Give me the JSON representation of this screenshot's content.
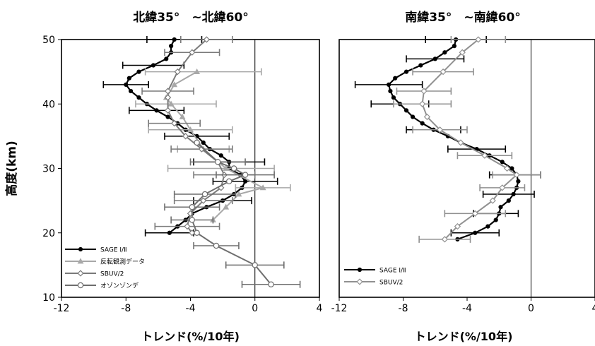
{
  "chart_data": [
    {
      "type": "line",
      "title": "北緯35°　~北緯60°",
      "xlabel": "トレンド(%/10年)",
      "ylabel": "高度(km)",
      "xlim": [
        -12,
        4
      ],
      "ylim": [
        10,
        50
      ],
      "xticks": [
        "-12",
        "-8",
        "-4",
        "0",
        "4"
      ],
      "yticks": [
        "10",
        "20",
        "30",
        "40",
        "50"
      ],
      "legend_position": "bottom-left",
      "series": [
        {
          "name": "SAGE Ⅰ/Ⅱ",
          "color": "#000000",
          "marker": "filled-circle",
          "points": [
            {
              "x": -5.3,
              "y": 20
            },
            {
              "x": -4.8,
              "y": 21
            },
            {
              "x": -4.3,
              "y": 22
            },
            {
              "x": -3.9,
              "y": 23
            },
            {
              "x": -3.0,
              "y": 24
            },
            {
              "x": -2.0,
              "y": 25
            },
            {
              "x": -1.3,
              "y": 26
            },
            {
              "x": -0.8,
              "y": 27
            },
            {
              "x": -0.6,
              "y": 28
            },
            {
              "x": -0.9,
              "y": 29
            },
            {
              "x": -1.6,
              "y": 30
            },
            {
              "x": -1.6,
              "y": 31
            },
            {
              "x": -2.1,
              "y": 32
            },
            {
              "x": -2.8,
              "y": 33
            },
            {
              "x": -3.2,
              "y": 34
            },
            {
              "x": -3.6,
              "y": 35
            },
            {
              "x": -4.3,
              "y": 36
            },
            {
              "x": -4.8,
              "y": 37
            },
            {
              "x": -5.4,
              "y": 38
            },
            {
              "x": -6.1,
              "y": 39
            },
            {
              "x": -6.7,
              "y": 40
            },
            {
              "x": -7.2,
              "y": 41
            },
            {
              "x": -7.7,
              "y": 42
            },
            {
              "x": -8.0,
              "y": 43
            },
            {
              "x": -7.8,
              "y": 44
            },
            {
              "x": -7.2,
              "y": 45
            },
            {
              "x": -6.3,
              "y": 46
            },
            {
              "x": -5.5,
              "y": 47
            },
            {
              "x": -5.2,
              "y": 48
            },
            {
              "x": -5.2,
              "y": 49
            },
            {
              "x": -5.0,
              "y": 50
            }
          ],
          "error_bars": [
            {
              "y": 20,
              "x": -5.3,
              "lo": -6.8,
              "hi": -3.8
            },
            {
              "y": 25,
              "x": -2.0,
              "lo": -3.8,
              "hi": -0.2
            },
            {
              "y": 28,
              "x": -0.6,
              "lo": -2.6,
              "hi": 1.4
            },
            {
              "y": 31,
              "x": -1.6,
              "lo": -3.8,
              "hi": 0.6
            },
            {
              "y": 35,
              "x": -3.6,
              "lo": -5.6,
              "hi": -1.6
            },
            {
              "y": 39,
              "x": -6.1,
              "lo": -7.8,
              "hi": -4.4
            },
            {
              "y": 43,
              "x": -8.0,
              "lo": -9.4,
              "hi": -6.6
            },
            {
              "y": 46,
              "x": -6.3,
              "lo": -8.2,
              "hi": -4.4
            },
            {
              "y": 50,
              "x": -5.0,
              "lo": -6.7,
              "hi": -3.3
            }
          ]
        },
        {
          "name": "反転観測データ",
          "color": "#a8a8a8",
          "marker": "triangle",
          "points": [
            {
              "x": -2.6,
              "y": 22
            },
            {
              "x": -1.8,
              "y": 24
            },
            {
              "x": -1.0,
              "y": 26
            },
            {
              "x": 0.5,
              "y": 27
            },
            {
              "x": -1.8,
              "y": 30
            },
            {
              "x": -3.2,
              "y": 33
            },
            {
              "x": -4.0,
              "y": 36
            },
            {
              "x": -4.5,
              "y": 38
            },
            {
              "x": -5.2,
              "y": 40
            },
            {
              "x": -5.5,
              "y": 41
            },
            {
              "x": -5.0,
              "y": 43
            },
            {
              "x": -3.6,
              "y": 45
            }
          ],
          "error_bars": [
            {
              "y": 27,
              "x": 0.5,
              "lo": -1.2,
              "hi": 2.2
            },
            {
              "y": 30,
              "x": -1.8,
              "lo": -5.4,
              "hi": 1.2
            },
            {
              "y": 33,
              "x": -3.2,
              "lo": -4.8,
              "hi": -1.6
            },
            {
              "y": 36,
              "x": -4.0,
              "lo": -6.6,
              "hi": -1.4
            },
            {
              "y": 40,
              "x": -5.2,
              "lo": -7.4,
              "hi": -2.4
            },
            {
              "y": 45,
              "x": -3.6,
              "lo": -6.8,
              "hi": 0.4
            }
          ]
        },
        {
          "name": "SBUV/2",
          "color": "#7a7a7a",
          "marker": "open-diamond",
          "points": [
            {
              "x": -3.9,
              "y": 20
            },
            {
              "x": -4.2,
              "y": 21
            },
            {
              "x": -4.0,
              "y": 23
            },
            {
              "x": -3.2,
              "y": 25
            },
            {
              "x": -2.1,
              "y": 27
            },
            {
              "x": -1.9,
              "y": 29
            },
            {
              "x": -2.3,
              "y": 31
            },
            {
              "x": -3.3,
              "y": 33
            },
            {
              "x": -4.3,
              "y": 35
            },
            {
              "x": -5.0,
              "y": 37
            },
            {
              "x": -5.4,
              "y": 39
            },
            {
              "x": -5.4,
              "y": 41
            },
            {
              "x": -5.4,
              "y": 42
            },
            {
              "x": -4.8,
              "y": 45
            },
            {
              "x": -3.9,
              "y": 48
            },
            {
              "x": -3.0,
              "y": 50
            }
          ],
          "error_bars": [
            {
              "y": 21,
              "x": -4.2,
              "lo": -6.2,
              "hi": -2.2
            },
            {
              "y": 25,
              "x": -3.2,
              "lo": -5.0,
              "hi": -1.4
            },
            {
              "y": 29,
              "x": -1.9,
              "lo": -3.8,
              "hi": 0.0
            },
            {
              "y": 33,
              "x": -3.3,
              "lo": -5.2,
              "hi": -1.4
            },
            {
              "y": 37,
              "x": -5.0,
              "lo": -6.6,
              "hi": -3.4
            },
            {
              "y": 42,
              "x": -5.4,
              "lo": -7.0,
              "hi": -3.8
            },
            {
              "y": 48,
              "x": -3.9,
              "lo": -5.6,
              "hi": -2.2
            },
            {
              "y": 50,
              "x": -3.0,
              "lo": -4.6,
              "hi": -1.4
            }
          ]
        },
        {
          "name": "オゾンゾンデ",
          "color": "#6e6e6e",
          "marker": "open-circle",
          "points": [
            {
              "x": 1.0,
              "y": 12
            },
            {
              "x": 0.0,
              "y": 15
            },
            {
              "x": -2.4,
              "y": 18
            },
            {
              "x": -3.6,
              "y": 20
            },
            {
              "x": -3.9,
              "y": 22
            },
            {
              "x": -3.9,
              "y": 24
            },
            {
              "x": -3.1,
              "y": 26
            },
            {
              "x": -1.6,
              "y": 28
            },
            {
              "x": -0.6,
              "y": 29
            },
            {
              "x": -1.3,
              "y": 30
            },
            {
              "x": -2.3,
              "y": 31
            },
            {
              "x": -3.6,
              "y": 34
            }
          ],
          "error_bars": [
            {
              "y": 12,
              "x": 1.0,
              "lo": -0.8,
              "hi": 2.8
            },
            {
              "y": 15,
              "x": 0.0,
              "lo": -1.8,
              "hi": 1.8
            },
            {
              "y": 18,
              "x": -2.4,
              "lo": -3.8,
              "hi": -1.0
            },
            {
              "y": 22,
              "x": -3.9,
              "lo": -5.2,
              "hi": -2.6
            },
            {
              "y": 24,
              "x": -3.9,
              "lo": -5.6,
              "hi": -2.2
            },
            {
              "y": 26,
              "x": -3.1,
              "lo": -5.0,
              "hi": -1.2
            },
            {
              "y": 29,
              "x": -0.6,
              "lo": -2.4,
              "hi": 1.2
            },
            {
              "y": 31,
              "x": -2.3,
              "lo": -4.0,
              "hi": -0.6
            }
          ]
        }
      ]
    },
    {
      "type": "line",
      "title": "南緯35°　~南緯60°",
      "xlabel": "トレンド(%/10年)",
      "ylabel": "",
      "xlim": [
        -12,
        4
      ],
      "ylim": [
        10,
        50
      ],
      "xticks": [
        "-12",
        "-8",
        "-4",
        "0",
        "4"
      ],
      "yticks": [],
      "legend_position": "bottom-left",
      "series": [
        {
          "name": "SAGE Ⅰ/Ⅱ",
          "color": "#000000",
          "marker": "filled-circle",
          "points": [
            {
              "x": -4.6,
              "y": 19
            },
            {
              "x": -3.5,
              "y": 20
            },
            {
              "x": -2.7,
              "y": 21
            },
            {
              "x": -2.2,
              "y": 22
            },
            {
              "x": -2.0,
              "y": 23
            },
            {
              "x": -1.9,
              "y": 24
            },
            {
              "x": -1.4,
              "y": 25
            },
            {
              "x": -1.1,
              "y": 26
            },
            {
              "x": -0.9,
              "y": 27
            },
            {
              "x": -0.8,
              "y": 28
            },
            {
              "x": -0.9,
              "y": 29
            },
            {
              "x": -1.2,
              "y": 30
            },
            {
              "x": -1.8,
              "y": 31
            },
            {
              "x": -2.6,
              "y": 32
            },
            {
              "x": -3.4,
              "y": 33
            },
            {
              "x": -4.4,
              "y": 34
            },
            {
              "x": -5.2,
              "y": 35
            },
            {
              "x": -6.1,
              "y": 36
            },
            {
              "x": -6.8,
              "y": 37
            },
            {
              "x": -7.4,
              "y": 38
            },
            {
              "x": -7.8,
              "y": 39
            },
            {
              "x": -8.2,
              "y": 40
            },
            {
              "x": -8.6,
              "y": 41
            },
            {
              "x": -8.8,
              "y": 42
            },
            {
              "x": -8.9,
              "y": 43
            },
            {
              "x": -8.5,
              "y": 44
            },
            {
              "x": -7.8,
              "y": 45
            },
            {
              "x": -6.9,
              "y": 46
            },
            {
              "x": -6.0,
              "y": 47
            },
            {
              "x": -5.4,
              "y": 48
            },
            {
              "x": -4.8,
              "y": 49
            },
            {
              "x": -4.7,
              "y": 50
            }
          ],
          "error_bars": [
            {
              "y": 20,
              "x": -3.5,
              "lo": -5.0,
              "hi": -2.0
            },
            {
              "y": 23,
              "x": -2.0,
              "lo": -3.6,
              "hi": -0.8
            },
            {
              "y": 26,
              "x": -1.1,
              "lo": -3.0,
              "hi": 0.2
            },
            {
              "y": 29,
              "x": -0.9,
              "lo": -2.6,
              "hi": 0.6
            },
            {
              "y": 33,
              "x": -3.4,
              "lo": -5.2,
              "hi": -1.6
            },
            {
              "y": 36,
              "x": -6.1,
              "lo": -7.8,
              "hi": -4.4
            },
            {
              "y": 40,
              "x": -8.2,
              "lo": -10.0,
              "hi": -6.4
            },
            {
              "y": 43,
              "x": -8.9,
              "lo": -11.0,
              "hi": -6.8
            },
            {
              "y": 47,
              "x": -6.0,
              "lo": -7.8,
              "hi": -4.2
            },
            {
              "y": 50,
              "x": -4.7,
              "lo": -6.6,
              "hi": -2.8
            }
          ]
        },
        {
          "name": "SBUV/2",
          "color": "#909090",
          "marker": "open-diamond",
          "points": [
            {
              "x": -5.4,
              "y": 19
            },
            {
              "x": -4.6,
              "y": 21
            },
            {
              "x": -3.5,
              "y": 23
            },
            {
              "x": -2.4,
              "y": 25
            },
            {
              "x": -1.8,
              "y": 27
            },
            {
              "x": -0.9,
              "y": 29
            },
            {
              "x": -1.5,
              "y": 30
            },
            {
              "x": -2.9,
              "y": 32
            },
            {
              "x": -4.4,
              "y": 34
            },
            {
              "x": -5.7,
              "y": 36
            },
            {
              "x": -6.5,
              "y": 38
            },
            {
              "x": -6.8,
              "y": 40
            },
            {
              "x": -6.7,
              "y": 42
            },
            {
              "x": -5.5,
              "y": 45
            },
            {
              "x": -4.3,
              "y": 48
            },
            {
              "x": -3.3,
              "y": 50
            }
          ],
          "error_bars": [
            {
              "y": 19,
              "x": -5.4,
              "lo": -7.0,
              "hi": -3.8
            },
            {
              "y": 23,
              "x": -3.5,
              "lo": -5.4,
              "hi": -1.6
            },
            {
              "y": 27,
              "x": -1.8,
              "lo": -3.2,
              "hi": -0.4
            },
            {
              "y": 29,
              "x": -0.9,
              "lo": -2.4,
              "hi": 0.6
            },
            {
              "y": 32,
              "x": -2.9,
              "lo": -4.6,
              "hi": -1.2
            },
            {
              "y": 36,
              "x": -5.7,
              "lo": -7.4,
              "hi": -4.0
            },
            {
              "y": 40,
              "x": -6.8,
              "lo": -8.6,
              "hi": -5.0
            },
            {
              "y": 42,
              "x": -6.7,
              "lo": -8.4,
              "hi": -5.0
            },
            {
              "y": 45,
              "x": -5.5,
              "lo": -7.4,
              "hi": -3.6
            },
            {
              "y": 50,
              "x": -3.3,
              "lo": -5.0,
              "hi": -1.6
            }
          ]
        }
      ]
    }
  ]
}
